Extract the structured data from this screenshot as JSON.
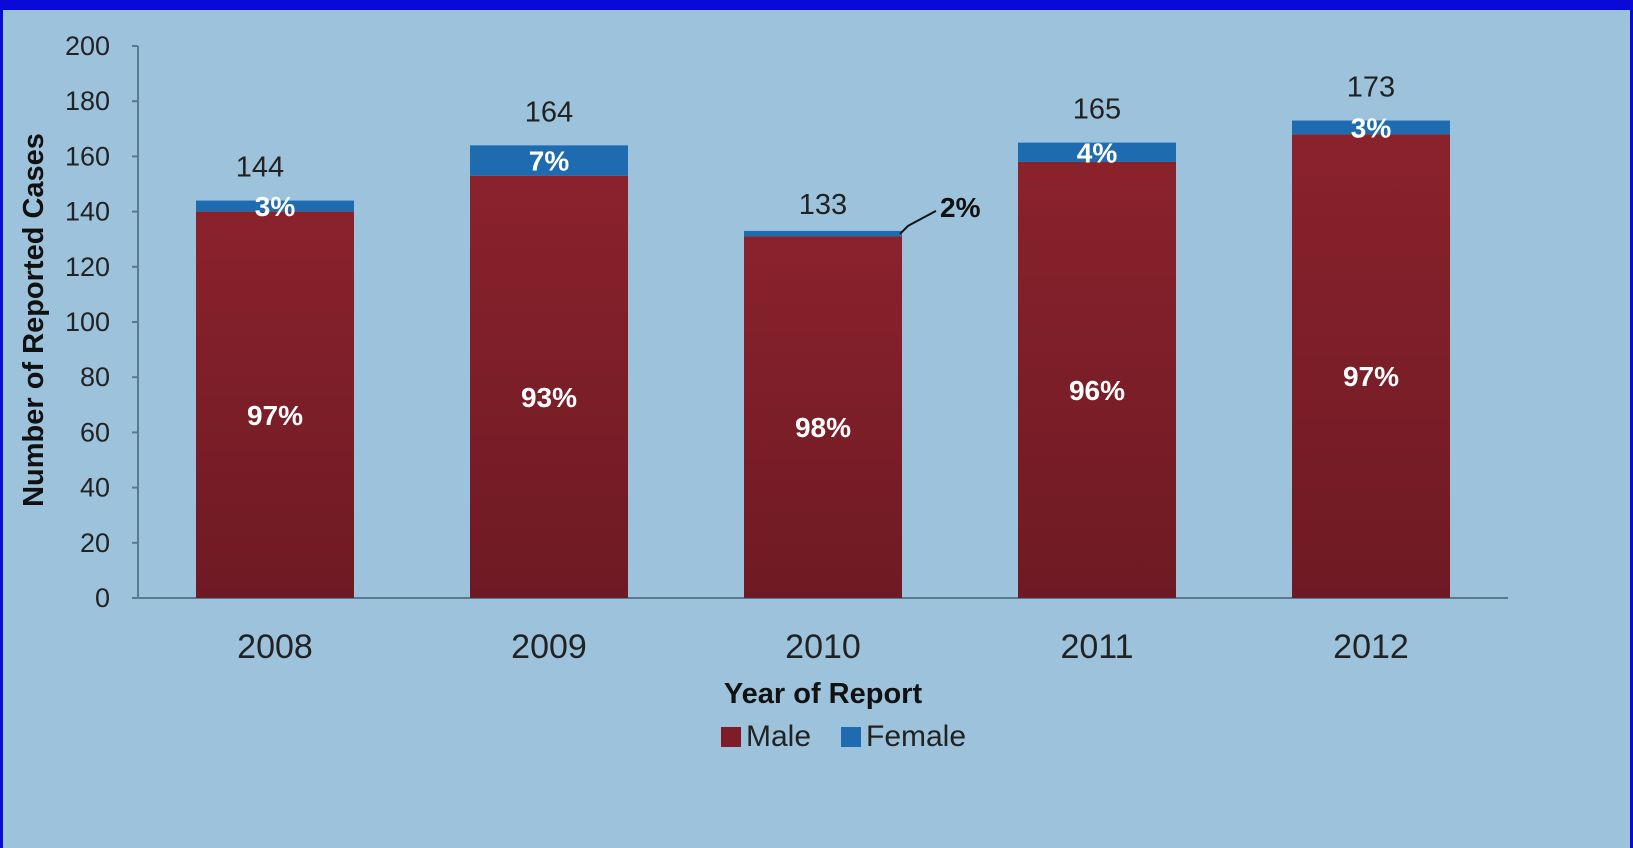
{
  "chart_data": {
    "type": "bar",
    "stacked": true,
    "categories": [
      "2008",
      "2009",
      "2010",
      "2011",
      "2012"
    ],
    "series": [
      {
        "name": "Male",
        "values": [
          140,
          153,
          131,
          158,
          168
        ],
        "percent_labels": [
          "97%",
          "93%",
          "98%",
          "96%",
          "97%"
        ]
      },
      {
        "name": "Female",
        "values": [
          4,
          11,
          2,
          7,
          5
        ],
        "percent_labels": [
          "3%",
          "7%",
          "2%",
          "4%",
          "3%"
        ]
      }
    ],
    "totals": [
      144,
      164,
      133,
      165,
      173
    ],
    "title": "",
    "xlabel": "Year of Report",
    "ylabel": "Number of Reported Cases",
    "ylim": [
      0,
      200
    ],
    "yticks": [
      0,
      20,
      40,
      60,
      80,
      100,
      120,
      140,
      160,
      180,
      200
    ],
    "grid": false,
    "legend": "bottom",
    "colors": {
      "Male": "#7e1d28",
      "Female": "#1f6bb0"
    },
    "callout_category": "2010"
  }
}
